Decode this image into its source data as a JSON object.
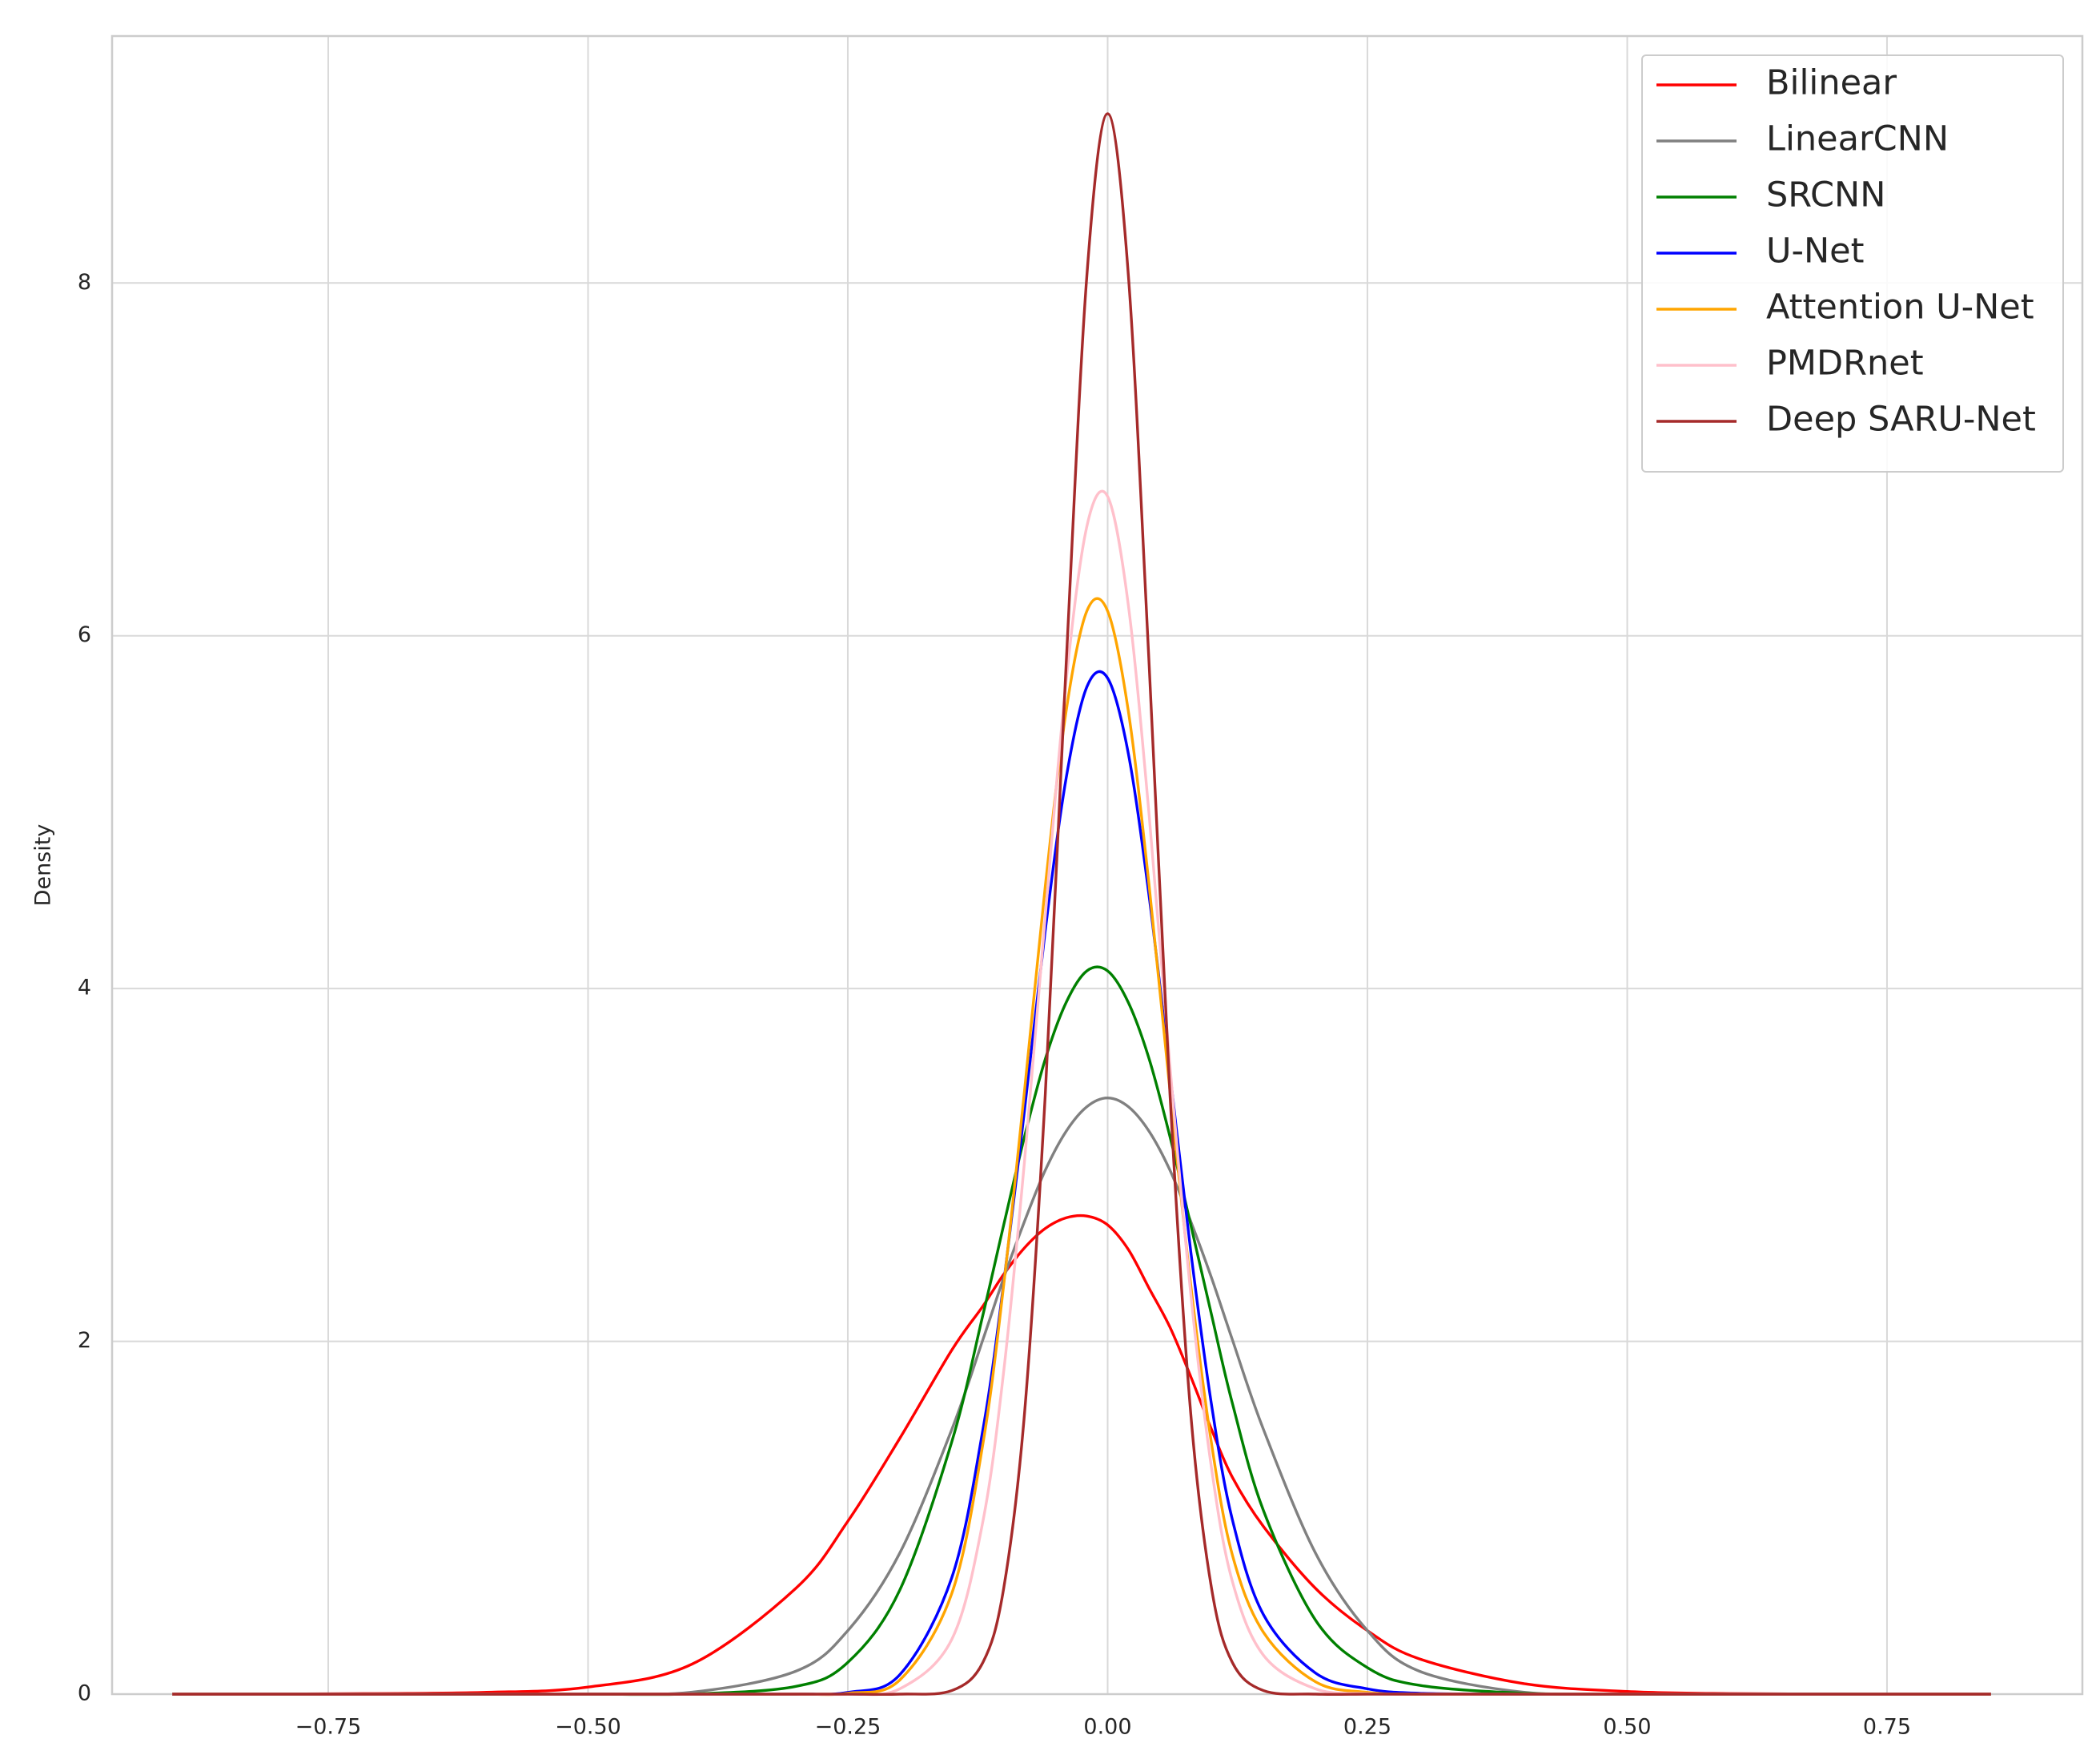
{
  "chart_data": {
    "type": "line",
    "y_label": "Density",
    "x": [
      -0.9,
      -0.75,
      -0.6,
      -0.5,
      -0.4,
      -0.3,
      -0.25,
      -0.2,
      -0.15,
      -0.12,
      -0.1,
      -0.08,
      -0.06,
      -0.04,
      -0.02,
      0,
      0.02,
      0.04,
      0.06,
      0.08,
      0.1,
      0.12,
      0.15,
      0.2,
      0.25,
      0.3,
      0.4,
      0.5,
      0.6,
      0.75,
      0.85
    ],
    "series": [
      {
        "name": "Bilinear",
        "color": "#ff0000",
        "values": [
          0,
          0.002,
          0.01,
          0.04,
          0.17,
          0.6,
          0.98,
          1.45,
          1.95,
          2.2,
          2.38,
          2.53,
          2.64,
          2.7,
          2.71,
          2.66,
          2.52,
          2.3,
          2.08,
          1.8,
          1.5,
          1.23,
          0.95,
          0.6,
          0.36,
          0.2,
          0.06,
          0.015,
          0.003,
          0,
          0
        ]
      },
      {
        "name": "LinearCNN",
        "color": "#808080",
        "values": [
          0,
          0,
          0,
          0.001,
          0.011,
          0.13,
          0.36,
          0.8,
          1.5,
          2.01,
          2.36,
          2.68,
          2.97,
          3.19,
          3.33,
          3.38,
          3.33,
          3.19,
          2.97,
          2.68,
          2.36,
          2.01,
          1.5,
          0.8,
          0.36,
          0.13,
          0.011,
          0.001,
          0,
          0,
          0
        ]
      },
      {
        "name": "SRCNN",
        "color": "#008000",
        "values": [
          0,
          0,
          0,
          0,
          0.001,
          0.044,
          0.18,
          0.59,
          1.43,
          2.15,
          2.66,
          3.16,
          3.6,
          3.92,
          4.1,
          4.1,
          3.92,
          3.6,
          3.16,
          2.66,
          2.15,
          1.65,
          1.04,
          0.42,
          0.15,
          0.05,
          0.005,
          0,
          0,
          0,
          0
        ]
      },
      {
        "name": "U-Net",
        "color": "#0000ff",
        "values": [
          0,
          0,
          0,
          0,
          0,
          0,
          0.01,
          0.11,
          0.66,
          1.5,
          2.33,
          3.31,
          4.33,
          5.19,
          5.71,
          5.76,
          5.33,
          4.52,
          3.52,
          2.51,
          1.64,
          0.99,
          0.45,
          0.12,
          0.03,
          0.005,
          0,
          0,
          0,
          0,
          0
        ]
      },
      {
        "name": "Attention U-Net",
        "color": "#ffa500",
        "values": [
          0,
          0,
          0,
          0,
          0,
          0,
          0.005,
          0.08,
          0.57,
          1.42,
          2.32,
          3.42,
          4.58,
          5.57,
          6.14,
          6.14,
          5.57,
          4.58,
          3.42,
          2.32,
          1.42,
          0.79,
          0.35,
          0.07,
          0.01,
          0,
          0,
          0,
          0,
          0,
          0
        ]
      },
      {
        "name": "PMDRnet",
        "color": "#ffc0cb",
        "values": [
          0,
          0,
          0,
          0,
          0,
          0,
          0,
          0.03,
          0.31,
          0.98,
          1.83,
          3.02,
          4.41,
          5.74,
          6.62,
          6.79,
          6.17,
          4.98,
          3.56,
          2.27,
          1.28,
          0.64,
          0.22,
          0.03,
          0.003,
          0,
          0,
          0,
          0,
          0,
          0
        ]
      },
      {
        "name": "Deep SARU-Net",
        "color": "#a52a2a",
        "values": [
          0,
          0,
          0,
          0,
          0,
          0,
          0,
          0,
          0.02,
          0.18,
          0.6,
          1.59,
          3.4,
          5.83,
          8.04,
          8.96,
          8.04,
          5.83,
          3.4,
          1.59,
          0.6,
          0.18,
          0.02,
          0,
          0,
          0,
          0,
          0,
          0,
          0,
          0
        ]
      }
    ],
    "xlim": [
      -0.958,
      0.938
    ],
    "ylim": [
      0,
      9.4
    ],
    "xticks": [
      {
        "value": -0.75,
        "label": "−0.75"
      },
      {
        "value": -0.5,
        "label": "−0.50"
      },
      {
        "value": -0.25,
        "label": "−0.25"
      },
      {
        "value": 0,
        "label": "0.00"
      },
      {
        "value": 0.25,
        "label": "0.25"
      },
      {
        "value": 0.5,
        "label": "0.50"
      },
      {
        "value": 0.75,
        "label": "0.75"
      }
    ],
    "yticks": [
      0,
      2,
      4,
      6,
      8
    ],
    "grid": true,
    "legend": "upper right"
  }
}
